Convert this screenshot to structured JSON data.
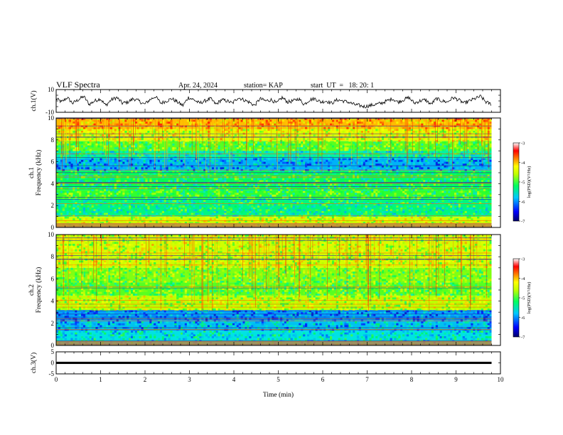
{
  "header": {
    "title": "VLF Spectra",
    "date": "Apr. 24, 2024",
    "station": "station= KAP",
    "start": "start  UT  =   18: 20: 1"
  },
  "chart_data": [
    {
      "type": "line",
      "panel": "ch1-waveform",
      "ylabel": "ch.1(V)",
      "ylim": [
        -10,
        10
      ],
      "yticks": [
        "10",
        "-10"
      ],
      "xlim": [
        0,
        10
      ],
      "series": [
        {
          "x_end": 9.8,
          "values": [
            2,
            -1,
            3,
            -2,
            1,
            4,
            -3,
            0,
            2,
            -4,
            1,
            3,
            -2,
            -1,
            2,
            0,
            -3,
            1,
            4,
            -2,
            0,
            2,
            -1,
            -4,
            3,
            1,
            -2,
            0,
            2,
            -3,
            1,
            0,
            -2,
            3,
            1,
            -1,
            -4,
            2,
            0,
            1,
            -2,
            3,
            -1,
            0,
            2,
            -3,
            1,
            2,
            -1,
            0,
            -2,
            1,
            0,
            -1,
            -3,
            -4,
            -5,
            -4,
            -3,
            -2,
            0,
            2,
            -1,
            1,
            3,
            -2,
            0,
            1,
            -3,
            2,
            0,
            -1,
            3,
            1,
            -2,
            0,
            2,
            4,
            -1,
            -3
          ]
        }
      ]
    },
    {
      "type": "heatmap",
      "panel": "ch1-spectrogram",
      "ylabel": "ch.1\nFrequency (kHz)",
      "ylim": [
        0,
        10
      ],
      "yticks": [
        "0",
        "2",
        "4",
        "6",
        "8",
        "10"
      ],
      "xlim": [
        0,
        10
      ],
      "x_end": 9.8,
      "colorbar": {
        "label": "log(PSD)(V²/Hz)",
        "range": [
          -7,
          -3
        ],
        "ticks": [
          "-7",
          "-6",
          "-5",
          "-4",
          "-3"
        ]
      },
      "bands": [
        {
          "f": [
            0,
            1.0
          ],
          "v": -4.6
        },
        {
          "f": [
            1.0,
            2.6
          ],
          "v": -5.4
        },
        {
          "f": [
            2.6,
            3.4
          ],
          "v": -5.1
        },
        {
          "f": [
            3.4,
            5.2
          ],
          "v": -5.3
        },
        {
          "f": [
            5.2,
            6.3
          ],
          "v": -6.0
        },
        {
          "f": [
            6.3,
            7.0
          ],
          "v": -5.5
        },
        {
          "f": [
            7.0,
            7.9
          ],
          "v": -5.0
        },
        {
          "f": [
            7.9,
            9.0
          ],
          "v": -4.5
        },
        {
          "f": [
            9.0,
            10.0
          ],
          "v": -4.1
        }
      ]
    },
    {
      "type": "heatmap",
      "panel": "ch2-spectrogram",
      "ylabel": "ch.2\nFrequency (kHz)",
      "ylim": [
        0,
        10
      ],
      "yticks": [
        "0",
        "2",
        "4",
        "6",
        "8",
        "10"
      ],
      "xlim": [
        0,
        10
      ],
      "x_end": 9.8,
      "colorbar": {
        "label": "log(PSD)(V²/Hz)",
        "range": [
          -7,
          -3
        ],
        "ticks": [
          "-7",
          "-6",
          "-5",
          "-4",
          "-3"
        ]
      },
      "bands": [
        {
          "f": [
            0,
            1.3
          ],
          "v": -5.7
        },
        {
          "f": [
            1.3,
            2.2
          ],
          "v": -5.9
        },
        {
          "f": [
            2.2,
            3.2
          ],
          "v": -6.1
        },
        {
          "f": [
            3.2,
            4.5
          ],
          "v": -4.7
        },
        {
          "f": [
            4.5,
            5.7
          ],
          "v": -5.0
        },
        {
          "f": [
            5.7,
            7.0
          ],
          "v": -4.9
        },
        {
          "f": [
            7.0,
            8.5
          ],
          "v": -4.6
        },
        {
          "f": [
            8.5,
            10.0
          ],
          "v": -4.6
        }
      ]
    },
    {
      "type": "line",
      "panel": "ch3-waveform",
      "ylabel": "ch.3(V)",
      "ylim": [
        -5,
        5
      ],
      "yticks": [
        "5",
        "0",
        "-5"
      ],
      "xlim": [
        0,
        10
      ],
      "xticks": [
        "0",
        "1",
        "2",
        "3",
        "4",
        "5",
        "6",
        "7",
        "8",
        "9",
        "10"
      ],
      "xlabel": "Time  (min)",
      "series": [
        {
          "x_end": 9.8,
          "level": 0,
          "thickness": 1.0
        }
      ]
    }
  ],
  "colors": {
    "colormap": [
      "#00006a",
      "#0000ff",
      "#00a0ff",
      "#00e8e0",
      "#00ff40",
      "#b0ff00",
      "#ffff00",
      "#ff8000",
      "#ff0000",
      "#ffffff"
    ]
  }
}
